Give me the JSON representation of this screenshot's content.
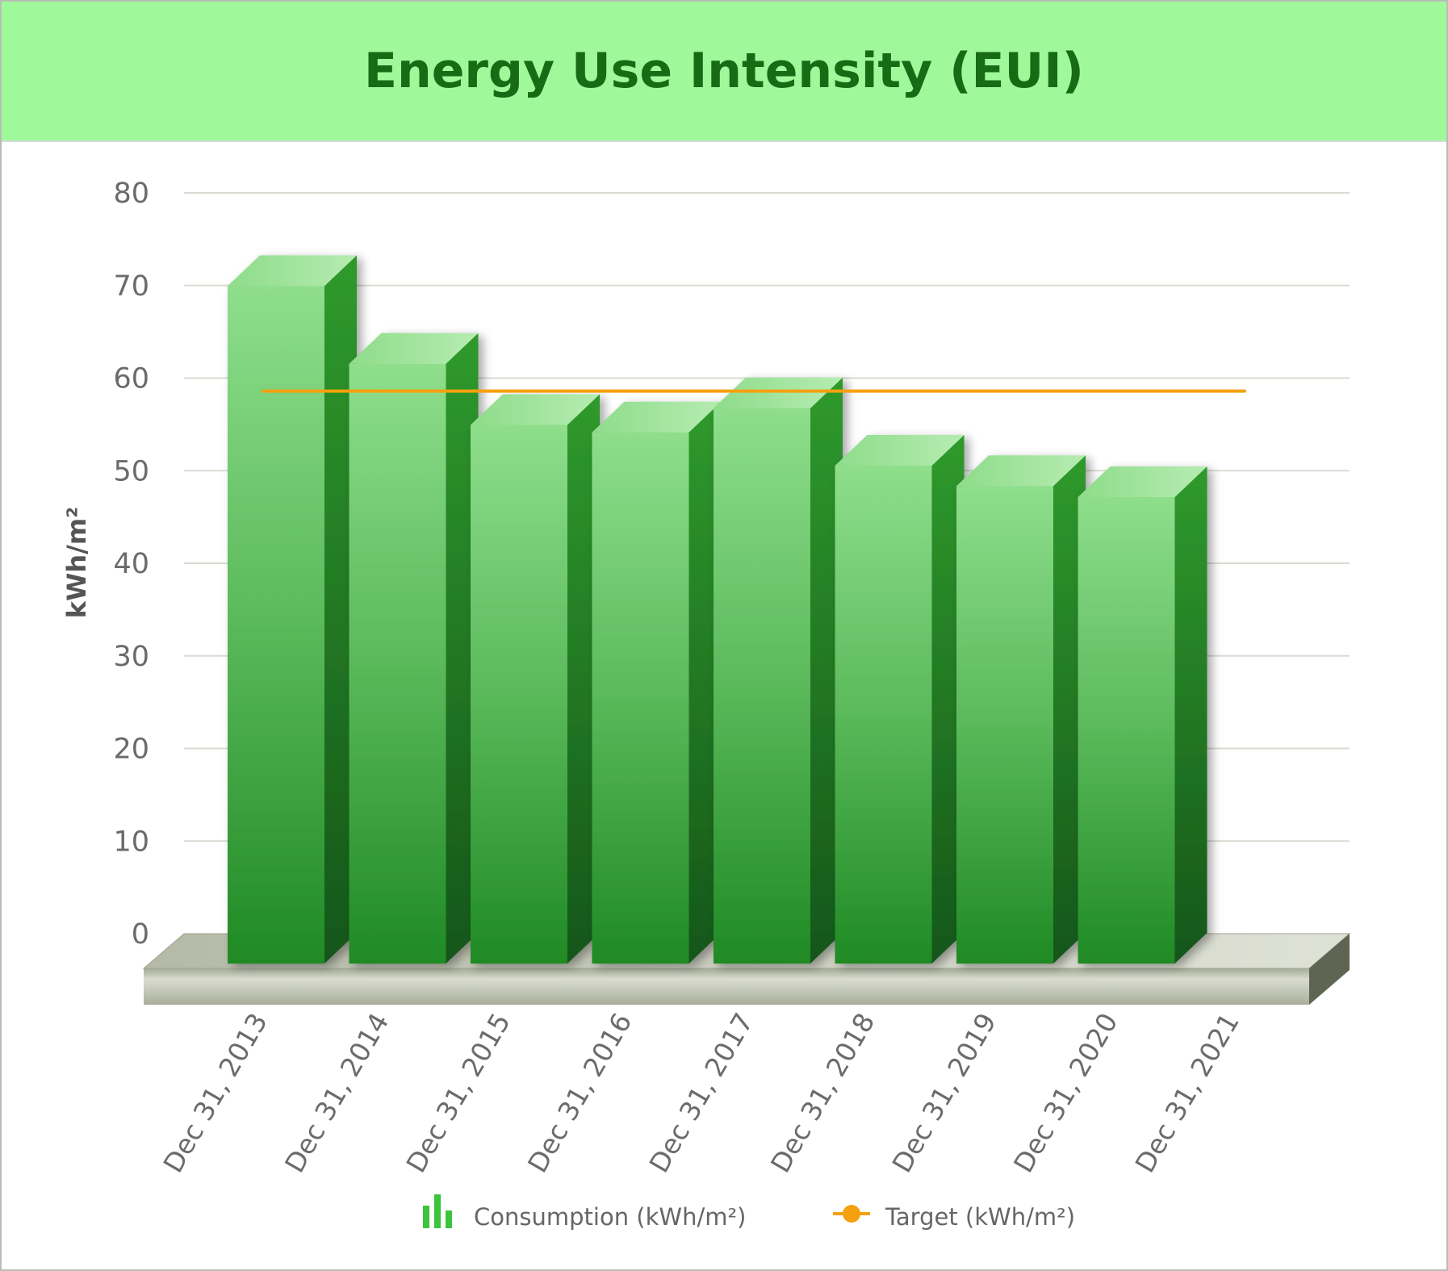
{
  "header": {
    "title": "Energy Use Intensity (EUI)"
  },
  "chart_data": {
    "type": "bar",
    "title": "Energy Use Intensity (EUI)",
    "ylabel": "kWh/m²",
    "xlabel": "",
    "ylim": [
      0,
      80
    ],
    "yticks": [
      0,
      10,
      20,
      30,
      40,
      50,
      60,
      70,
      80
    ],
    "grid": true,
    "legend_position": "bottom",
    "categories": [
      "Dec 31, 2013",
      "Dec 31, 2014",
      "Dec 31, 2015",
      "Dec 31, 2016",
      "Dec 31, 2017",
      "Dec 31, 2018",
      "Dec 31, 2019",
      "Dec 31, 2020",
      "Dec 31, 2021"
    ],
    "series": [
      {
        "name": "Consumption (kWh/m²)",
        "type": "bar",
        "color": "#2e9a2e",
        "values": [
          71.6,
          63.2,
          56.6,
          55.8,
          58.4,
          52.2,
          50.0,
          48.8,
          null
        ]
      },
      {
        "name": "Target (kWh/m²)",
        "type": "line",
        "color": "#f5a00f",
        "values": [
          58.6,
          58.6,
          58.6,
          58.6,
          58.6,
          58.6,
          58.6,
          58.6,
          58.6
        ]
      }
    ]
  }
}
